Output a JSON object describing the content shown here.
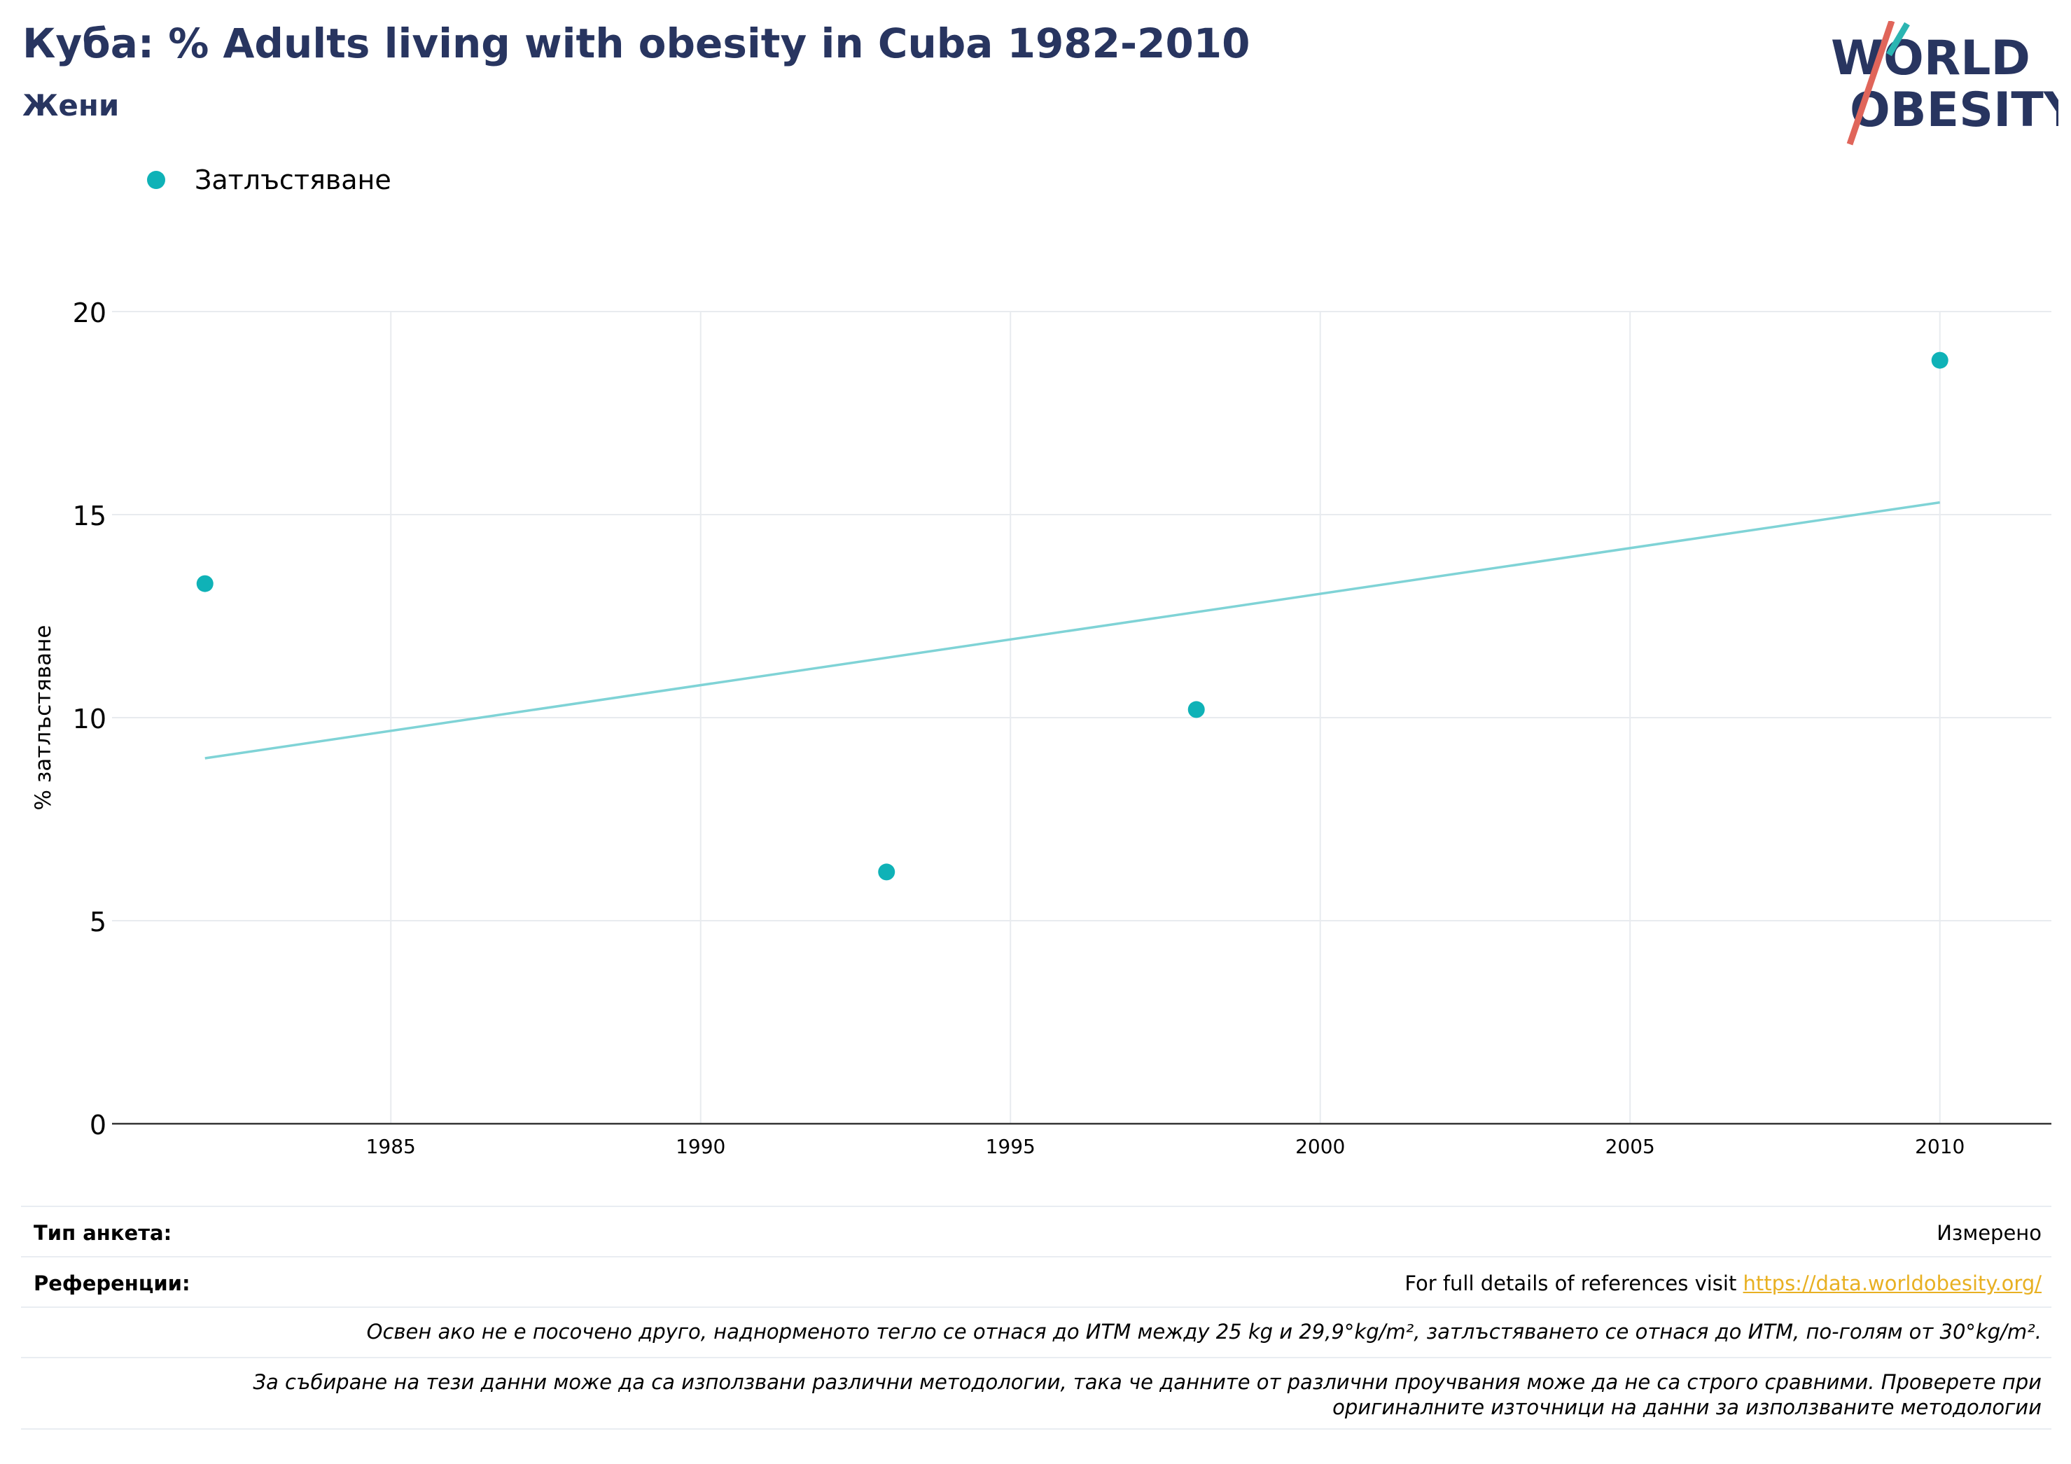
{
  "header": {
    "title": "Куба: % Adults living with obesity in Cuba 1982-2010",
    "subtitle": "Жени"
  },
  "logo": {
    "line1": "WORLD",
    "line2": "OBESITY",
    "icon": "world-obesity-logo"
  },
  "colors": {
    "accent": "#0fb2b7",
    "trend": "#7fd3d6",
    "title": "#283560",
    "link": "#e8b022",
    "logo_slash": "#e0655a",
    "logo_teal": "#2bb5b2"
  },
  "chart_data": {
    "type": "scatter",
    "title": "Куба: % Adults living with obesity in Cuba 1982-2010",
    "subtitle": "Жени",
    "xlabel": "",
    "ylabel": "% затлъстяване",
    "xlim": [
      1980.5,
      2011.8
    ],
    "ylim": [
      0,
      20
    ],
    "xticks": [
      1985,
      1990,
      1995,
      2000,
      2005,
      2010
    ],
    "yticks": [
      0,
      5,
      10,
      15,
      20
    ],
    "grid": true,
    "legend_position": "top-left",
    "series": [
      {
        "name": "Затлъстяване",
        "x": [
          1982,
          1993,
          1998,
          2010
        ],
        "y": [
          13.3,
          6.2,
          10.2,
          18.8
        ]
      }
    ],
    "trendline": {
      "x": [
        1982,
        2010
      ],
      "y": [
        9.0,
        15.3
      ]
    }
  },
  "footer": {
    "survey_label": "Тип анкета:",
    "survey_value": "Измерено",
    "references_label": "Референции:",
    "references_text": "For full details of references visit ",
    "references_link": "https://data.worldobesity.org/",
    "note1": "Освен ако не е посочено друго, наднорменото тегло се отнася до ИТМ между 25 kg и 29,9°kg/m², затлъстяването се отнася до ИТМ, по-голям от 30°kg/m².",
    "note2_line1": "За събиране на тези данни може да са използвани различни методологии, така че данните от различни проучвания може да не са строго сравними. Проверете при",
    "note2_line2": "оригиналните източници на данни за използваните методологии"
  }
}
